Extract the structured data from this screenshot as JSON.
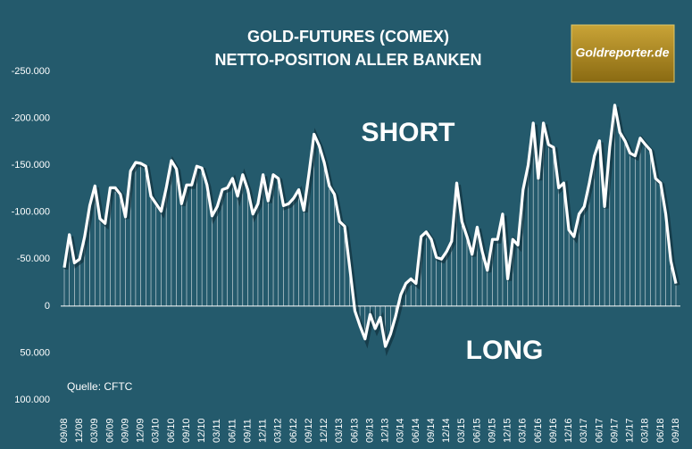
{
  "chart_data": {
    "type": "line-drop",
    "title": [
      "GOLD-FUTURES (COMEX)",
      "NETTO-POSITION ALLER BANKEN"
    ],
    "annotations": [
      "SHORT",
      "LONG"
    ],
    "source": "Quelle: CFTC",
    "logo": "Goldreporter.de",
    "color": "#ffffff",
    "categories": [
      "09/08",
      null,
      null,
      "12/08",
      null,
      null,
      "03/09",
      null,
      null,
      "06/09",
      null,
      null,
      "09/09",
      null,
      null,
      "12/09",
      null,
      null,
      "03/10",
      null,
      null,
      "06/10",
      null,
      null,
      "09/10",
      null,
      null,
      "12/10",
      null,
      null,
      "03/11",
      null,
      null,
      "06/11",
      null,
      null,
      "09/11",
      null,
      null,
      "12/11",
      null,
      null,
      "03/12",
      null,
      null,
      "06/12",
      null,
      null,
      "09/12",
      null,
      null,
      "12/12",
      null,
      null,
      "03/13",
      null,
      null,
      "06/13",
      null,
      null,
      "09/13",
      null,
      null,
      "12/13",
      null,
      null,
      "03/14",
      null,
      null,
      "06/14",
      null,
      null,
      "09/14",
      null,
      null,
      "12/14",
      null,
      null,
      "03/15",
      null,
      null,
      "06/15",
      null,
      null,
      "09/15",
      null,
      null,
      "12/15",
      null,
      null,
      "03/16",
      null,
      null,
      "06/16",
      null,
      null,
      "09/16",
      null,
      null,
      "12/16",
      null,
      null,
      "03/17",
      null,
      null,
      "06/17",
      null,
      null,
      "09/17",
      null,
      null,
      "12/17",
      null,
      null,
      "03/18",
      null,
      null,
      "06/18",
      null,
      null,
      "09/18"
    ],
    "values": [
      -41000,
      -76000,
      -46000,
      -50000,
      -74000,
      -107000,
      -128000,
      -93000,
      -88000,
      -126000,
      -126000,
      -119000,
      -95000,
      -144000,
      -153000,
      -152000,
      -149000,
      -117000,
      -109000,
      -101000,
      -126000,
      -155000,
      -146000,
      -109000,
      -129000,
      -129000,
      -149000,
      -147000,
      -129000,
      -96000,
      -106000,
      -124000,
      -126000,
      -136000,
      -117000,
      -140000,
      -124000,
      -98000,
      -109000,
      -140000,
      -112000,
      -140000,
      -136000,
      -107000,
      -109000,
      -115000,
      -124000,
      -102000,
      -141000,
      -183000,
      -171000,
      -153000,
      -128000,
      -119000,
      -90000,
      -85000,
      -41000,
      5000,
      21000,
      35000,
      9000,
      24000,
      12000,
      43000,
      30000,
      11000,
      -12000,
      -24000,
      -29000,
      -24000,
      -74000,
      -79000,
      -71000,
      -52000,
      -50000,
      -58000,
      -69000,
      -131000,
      -90000,
      -74000,
      -55000,
      -84000,
      -58000,
      -38000,
      -71000,
      -71000,
      -98000,
      -29000,
      -71000,
      -65000,
      -124000,
      -150000,
      -195000,
      -136000,
      -195000,
      -172000,
      -169000,
      -126000,
      -131000,
      -81000,
      -74000,
      -98000,
      -106000,
      -131000,
      -160000,
      -176000,
      -106000,
      -169000,
      -214000,
      -185000,
      -176000,
      -163000,
      -160000,
      -179000,
      -172000,
      -166000,
      -136000,
      -131000,
      -98000,
      -48000,
      -24000
    ],
    "ylim": [
      100000,
      -250000
    ],
    "yticks": [
      {
        "value": -250000,
        "label": "-250.000"
      },
      {
        "value": -200000,
        "label": "-200.000"
      },
      {
        "value": -150000,
        "label": "-150.000"
      },
      {
        "value": -100000,
        "label": "-100.000"
      },
      {
        "value": -50000,
        "label": "-50.000"
      },
      0,
      {
        "value": 50000,
        "label": "50.000"
      },
      {
        "value": 100000,
        "label": "100.000"
      }
    ]
  }
}
